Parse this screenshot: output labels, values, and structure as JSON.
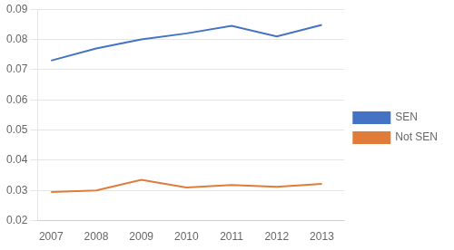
{
  "chart_data": {
    "type": "line",
    "x": [
      2007,
      2008,
      2009,
      2010,
      2011,
      2012,
      2013
    ],
    "series": [
      {
        "name": "SEN",
        "color": "#4472C4",
        "values": [
          0.073,
          0.077,
          0.08,
          0.082,
          0.0845,
          0.081,
          0.0848
        ]
      },
      {
        "name": "Not SEN",
        "color": "#E07B39",
        "values": [
          0.0295,
          0.03,
          0.0335,
          0.031,
          0.0318,
          0.0312,
          0.0322
        ]
      }
    ],
    "xlim": [
      2006.7,
      2013.5
    ],
    "xticks": [
      2007,
      2008,
      2009,
      2010,
      2011,
      2012,
      2013
    ],
    "ylim": [
      0.02,
      0.09
    ],
    "yticks": [
      0.02,
      0.03,
      0.04,
      0.05,
      0.06,
      0.07,
      0.08,
      0.09
    ],
    "grid": "y",
    "legend": "right"
  }
}
